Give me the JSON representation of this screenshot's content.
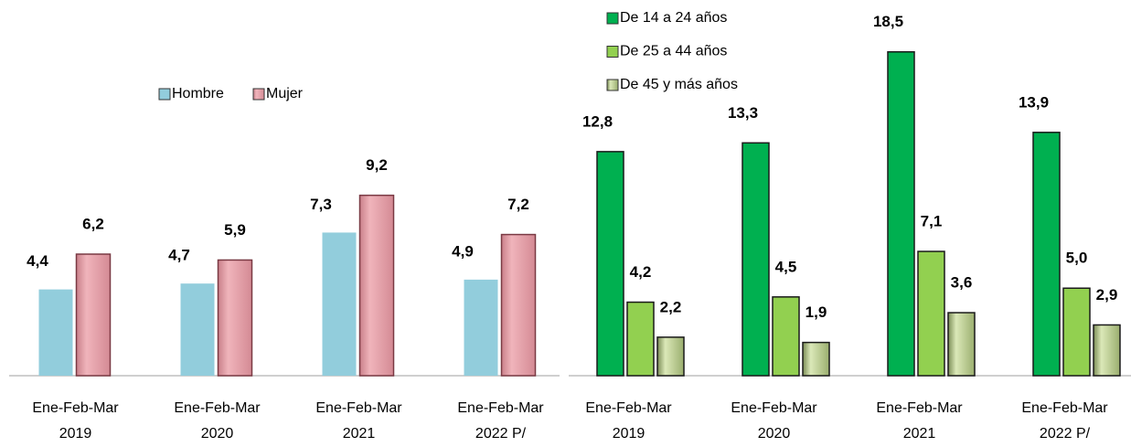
{
  "chart_data": [
    {
      "type": "bar",
      "categories": [
        [
          "Ene-Feb-Mar",
          "2019"
        ],
        [
          "Ene-Feb-Mar",
          "2020"
        ],
        [
          "Ene-Feb-Mar",
          "2021"
        ],
        [
          "Ene-Feb-Mar",
          "2022 P/"
        ]
      ],
      "ylim": [
        0,
        10
      ],
      "legend": "top-center",
      "series": [
        {
          "name": "Hombre",
          "color": "#92cddc",
          "label_color": "#595959",
          "values": [
            4.4,
            4.7,
            7.3,
            4.9
          ],
          "value_labels": [
            "4,4",
            "4,7",
            "7,3",
            "4,9"
          ]
        },
        {
          "name": "Mujer",
          "color": "#e6a0a8",
          "label_color": "#000000",
          "values": [
            6.2,
            5.9,
            9.2,
            7.2
          ],
          "value_labels": [
            "6,2",
            "5,9",
            "9,2",
            "7,2"
          ]
        }
      ]
    },
    {
      "type": "bar",
      "categories": [
        [
          "Ene-Feb-Mar",
          "2019"
        ],
        [
          "Ene-Feb-Mar",
          "2020"
        ],
        [
          "Ene-Feb-Mar",
          "2021"
        ],
        [
          "Ene-Feb-Mar",
          "2022 P/"
        ]
      ],
      "ylim": [
        0,
        20
      ],
      "legend": "top-left",
      "series": [
        {
          "name": "De 14 a 24 años",
          "color": "#00b050",
          "label_color": "#000000",
          "values": [
            12.8,
            13.3,
            18.5,
            13.9
          ],
          "value_labels": [
            "12,8",
            "13,3",
            "18,5",
            "13,9"
          ]
        },
        {
          "name": "De 25 a 44 años",
          "color": "#92d050",
          "label_color": "#595959",
          "values": [
            4.2,
            4.5,
            7.1,
            5.0
          ],
          "value_labels": [
            "4,2",
            "4,5",
            "7,1",
            "5,0"
          ]
        },
        {
          "name": "De 45 y más años",
          "color": "#c4d79b",
          "label_color": "#595959",
          "values": [
            2.2,
            1.9,
            3.6,
            2.9
          ],
          "value_labels": [
            "2,2",
            "1,9",
            "3,6",
            "2,9"
          ]
        }
      ]
    }
  ]
}
